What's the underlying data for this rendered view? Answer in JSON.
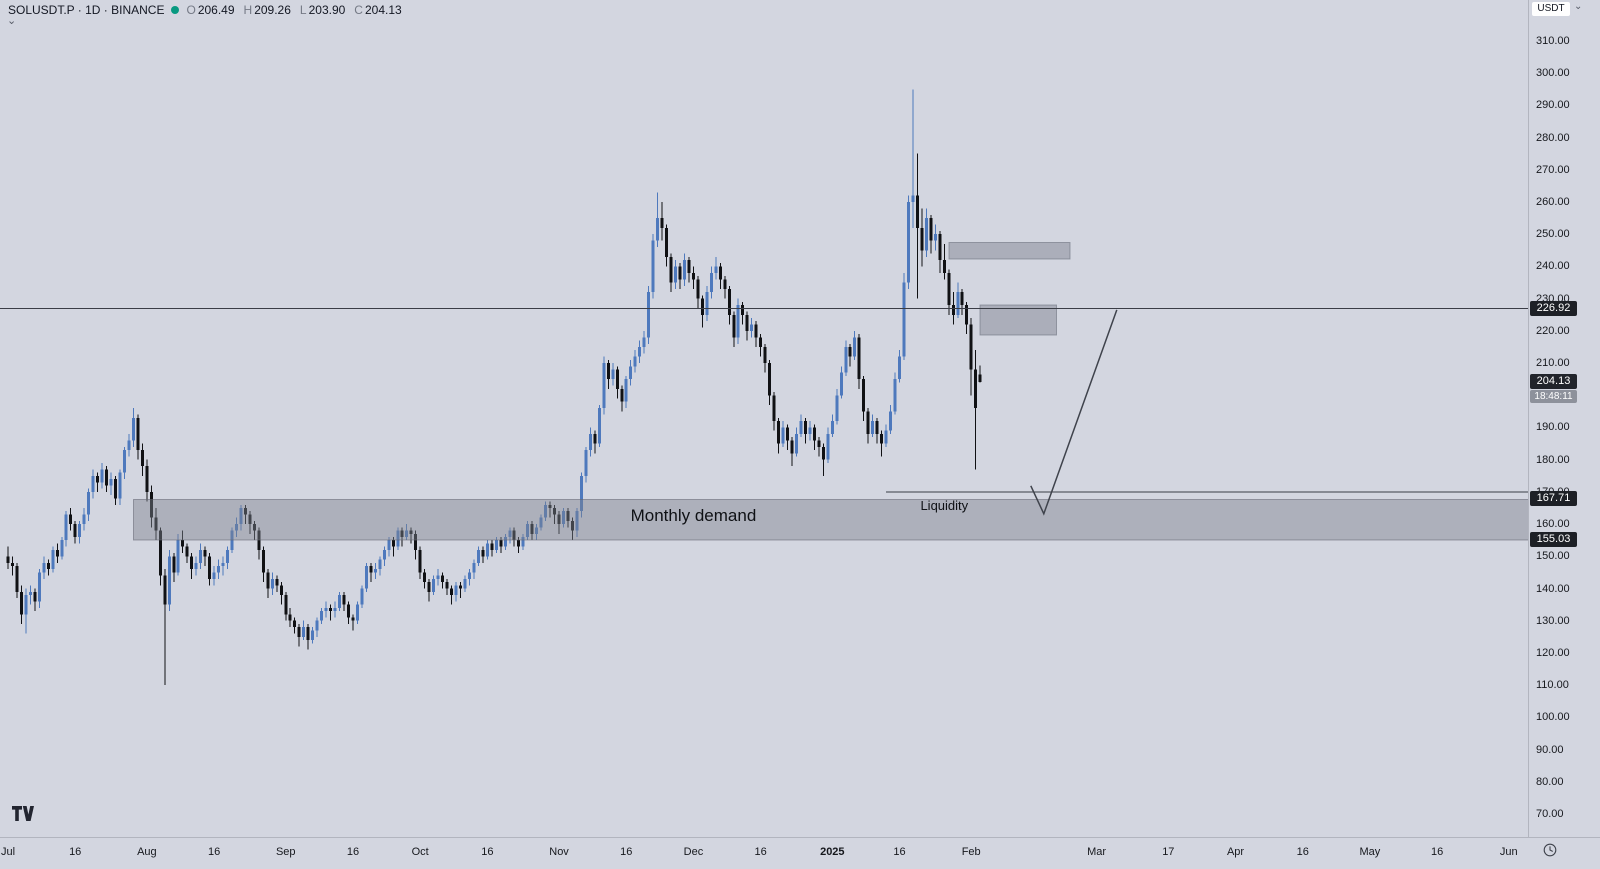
{
  "legend": {
    "title": "SOLUSDT.P · 1D · BINANCE",
    "ohlc": {
      "o_label": "O",
      "o": "206.49",
      "h_label": "H",
      "h": "209.26",
      "l_label": "L",
      "l": "203.90",
      "c_label": "C",
      "c": "204.13"
    }
  },
  "icons": {
    "caret_down": "⌄"
  },
  "price_axis": {
    "currency": "USDT",
    "tags": [
      {
        "value": "226.92",
        "price": 226.92,
        "bg": "#1d2026"
      },
      {
        "value": "167.71",
        "price": 167.71,
        "bg": "#1d2026"
      },
      {
        "value": "155.03",
        "price": 155.03,
        "bg": "#1d2026"
      }
    ],
    "current": {
      "value": "204.13",
      "price": 204.13,
      "bg": "#21242b",
      "countdown": "18:48:11",
      "countdown_bg": "#8d919b"
    }
  },
  "time_axis": {
    "ticks": [
      {
        "label": "Jul",
        "day": 0
      },
      {
        "label": "16",
        "day": 15
      },
      {
        "label": "Aug",
        "day": 31
      },
      {
        "label": "16",
        "day": 46
      },
      {
        "label": "Sep",
        "day": 62
      },
      {
        "label": "16",
        "day": 77
      },
      {
        "label": "Oct",
        "day": 92
      },
      {
        "label": "16",
        "day": 107
      },
      {
        "label": "Nov",
        "day": 123
      },
      {
        "label": "16",
        "day": 138
      },
      {
        "label": "Dec",
        "day": 153
      },
      {
        "label": "16",
        "day": 168
      },
      {
        "label": "2025",
        "day": 184,
        "bold": true
      },
      {
        "label": "16",
        "day": 199
      },
      {
        "label": "Feb",
        "day": 215
      },
      {
        "label": "Mar",
        "day": 243
      },
      {
        "label": "17",
        "day": 259
      },
      {
        "label": "Apr",
        "day": 274
      },
      {
        "label": "16",
        "day": 289
      },
      {
        "label": "May",
        "day": 304
      },
      {
        "label": "16",
        "day": 319
      },
      {
        "label": "Jun",
        "day": 335
      }
    ]
  },
  "chart_data": {
    "type": "candlestick",
    "symbol": "SOLUSDT.P",
    "exchange": "BINANCE",
    "interval": "1D",
    "start_date": "2024-07-01",
    "title": "SOLUSDT.P 1D BINANCE",
    "y_axis": {
      "min": 70,
      "max": 310,
      "step": 10
    },
    "colors": {
      "up": "#4e79bd",
      "down": "#101114",
      "background": "#d3d6e0",
      "drawing": "#3a3d46"
    },
    "candles": [
      [
        150,
        153,
        146,
        148
      ],
      [
        148,
        150,
        144,
        147
      ],
      [
        147,
        148,
        137,
        139
      ],
      [
        139,
        141,
        129,
        132
      ],
      [
        132,
        140,
        126,
        138
      ],
      [
        138,
        141,
        135,
        139
      ],
      [
        139,
        140,
        133,
        136
      ],
      [
        136,
        146,
        134,
        145
      ],
      [
        145,
        150,
        143,
        148
      ],
      [
        148,
        149,
        144,
        146
      ],
      [
        146,
        153,
        145,
        152
      ],
      [
        152,
        154,
        148,
        150
      ],
      [
        150,
        156,
        149,
        155
      ],
      [
        155,
        164,
        153,
        163
      ],
      [
        163,
        165,
        158,
        160
      ],
      [
        160,
        161,
        154,
        156
      ],
      [
        156,
        161,
        154,
        160
      ],
      [
        160,
        165,
        158,
        163
      ],
      [
        163,
        171,
        161,
        170
      ],
      [
        170,
        177,
        168,
        175
      ],
      [
        175,
        176,
        170,
        173
      ],
      [
        173,
        179,
        171,
        177
      ],
      [
        177,
        178,
        170,
        172
      ],
      [
        172,
        176,
        169,
        174
      ],
      [
        174,
        175,
        166,
        168
      ],
      [
        168,
        177,
        166,
        176
      ],
      [
        176,
        184,
        174,
        183
      ],
      [
        183,
        188,
        181,
        186
      ],
      [
        186,
        196,
        184,
        193
      ],
      [
        193,
        194,
        180,
        183
      ],
      [
        183,
        185,
        175,
        178
      ],
      [
        178,
        180,
        167,
        170
      ],
      [
        170,
        172,
        159,
        162
      ],
      [
        162,
        165,
        155,
        158
      ],
      [
        158,
        159,
        141,
        144
      ],
      [
        144,
        146,
        110,
        135
      ],
      [
        135,
        152,
        133,
        150
      ],
      [
        150,
        151,
        142,
        145
      ],
      [
        145,
        157,
        144,
        155
      ],
      [
        155,
        158,
        151,
        153
      ],
      [
        153,
        154,
        148,
        150
      ],
      [
        150,
        151,
        143,
        146
      ],
      [
        146,
        150,
        144,
        148
      ],
      [
        148,
        154,
        146,
        152
      ],
      [
        152,
        153,
        147,
        150
      ],
      [
        150,
        151,
        141,
        143
      ],
      [
        143,
        147,
        141,
        145
      ],
      [
        145,
        149,
        143,
        147
      ],
      [
        147,
        150,
        144,
        148
      ],
      [
        148,
        153,
        146,
        152
      ],
      [
        152,
        159,
        151,
        158
      ],
      [
        158,
        162,
        156,
        160
      ],
      [
        160,
        166,
        158,
        165
      ],
      [
        165,
        166,
        160,
        163
      ],
      [
        163,
        164,
        157,
        160
      ],
      [
        160,
        161,
        155,
        158
      ],
      [
        158,
        159,
        149,
        152
      ],
      [
        152,
        153,
        142,
        145
      ],
      [
        145,
        146,
        137,
        140
      ],
      [
        140,
        145,
        138,
        143
      ],
      [
        143,
        144,
        139,
        141
      ],
      [
        141,
        142,
        135,
        138
      ],
      [
        138,
        139,
        130,
        132
      ],
      [
        132,
        134,
        128,
        130
      ],
      [
        130,
        131,
        126,
        128
      ],
      [
        128,
        129,
        122,
        125
      ],
      [
        125,
        130,
        124,
        128
      ],
      [
        128,
        129,
        121,
        124
      ],
      [
        124,
        128,
        123,
        127
      ],
      [
        127,
        131,
        125,
        130
      ],
      [
        130,
        134,
        129,
        133
      ],
      [
        133,
        136,
        131,
        134
      ],
      [
        134,
        135,
        130,
        133
      ],
      [
        133,
        136,
        131,
        134
      ],
      [
        134,
        139,
        133,
        138
      ],
      [
        138,
        139,
        133,
        135
      ],
      [
        135,
        136,
        129,
        131
      ],
      [
        131,
        132,
        127,
        130
      ],
      [
        130,
        136,
        129,
        135
      ],
      [
        135,
        141,
        134,
        140
      ],
      [
        140,
        148,
        139,
        147
      ],
      [
        147,
        148,
        142,
        145
      ],
      [
        145,
        148,
        143,
        146
      ],
      [
        146,
        150,
        144,
        149
      ],
      [
        149,
        153,
        147,
        152
      ],
      [
        152,
        156,
        150,
        155
      ],
      [
        155,
        156,
        150,
        153
      ],
      [
        153,
        159,
        152,
        158
      ],
      [
        158,
        159,
        153,
        156
      ],
      [
        156,
        160,
        155,
        158
      ],
      [
        158,
        159,
        154,
        157
      ],
      [
        157,
        158,
        149,
        152
      ],
      [
        152,
        153,
        143,
        145
      ],
      [
        145,
        146,
        140,
        142
      ],
      [
        142,
        143,
        136,
        139
      ],
      [
        139,
        144,
        138,
        143
      ],
      [
        143,
        146,
        141,
        144
      ],
      [
        144,
        145,
        140,
        142
      ],
      [
        142,
        143,
        138,
        140
      ],
      [
        140,
        141,
        135,
        138
      ],
      [
        138,
        142,
        136,
        141
      ],
      [
        141,
        142,
        137,
        140
      ],
      [
        140,
        144,
        139,
        143
      ],
      [
        143,
        146,
        141,
        145
      ],
      [
        145,
        149,
        143,
        148
      ],
      [
        148,
        153,
        147,
        152
      ],
      [
        152,
        153,
        148,
        150
      ],
      [
        150,
        155,
        149,
        154
      ],
      [
        154,
        155,
        150,
        152
      ],
      [
        152,
        156,
        151,
        155
      ],
      [
        155,
        156,
        151,
        153
      ],
      [
        153,
        157,
        152,
        156
      ],
      [
        156,
        159,
        154,
        158
      ],
      [
        158,
        159,
        153,
        155
      ],
      [
        155,
        156,
        151,
        153
      ],
      [
        153,
        157,
        152,
        156
      ],
      [
        156,
        161,
        155,
        160
      ],
      [
        160,
        161,
        155,
        157
      ],
      [
        157,
        160,
        155,
        159
      ],
      [
        159,
        163,
        158,
        162
      ],
      [
        162,
        167,
        161,
        166
      ],
      [
        166,
        167,
        162,
        165
      ],
      [
        165,
        166,
        160,
        163
      ],
      [
        163,
        164,
        157,
        160
      ],
      [
        160,
        165,
        159,
        164
      ],
      [
        164,
        165,
        159,
        161
      ],
      [
        161,
        162,
        155,
        158
      ],
      [
        158,
        165,
        156,
        164
      ],
      [
        164,
        176,
        162,
        175
      ],
      [
        175,
        184,
        173,
        183
      ],
      [
        183,
        190,
        181,
        188
      ],
      [
        188,
        189,
        182,
        185
      ],
      [
        185,
        197,
        184,
        196
      ],
      [
        196,
        212,
        194,
        210
      ],
      [
        210,
        211,
        202,
        205
      ],
      [
        205,
        210,
        203,
        208
      ],
      [
        208,
        209,
        199,
        202
      ],
      [
        202,
        203,
        195,
        198
      ],
      [
        198,
        206,
        196,
        205
      ],
      [
        205,
        211,
        203,
        209
      ],
      [
        209,
        214,
        207,
        212
      ],
      [
        212,
        217,
        210,
        215
      ],
      [
        215,
        220,
        213,
        218
      ],
      [
        218,
        234,
        216,
        232
      ],
      [
        232,
        250,
        230,
        248
      ],
      [
        248,
        263,
        246,
        255
      ],
      [
        255,
        260,
        248,
        252
      ],
      [
        252,
        253,
        240,
        243
      ],
      [
        243,
        244,
        232,
        235
      ],
      [
        235,
        242,
        233,
        240
      ],
      [
        240,
        241,
        233,
        236
      ],
      [
        236,
        244,
        234,
        242
      ],
      [
        242,
        243,
        235,
        238
      ],
      [
        238,
        240,
        233,
        236
      ],
      [
        236,
        237,
        227,
        230
      ],
      [
        230,
        231,
        221,
        225
      ],
      [
        225,
        234,
        223,
        232
      ],
      [
        232,
        240,
        230,
        238
      ],
      [
        238,
        243,
        236,
        240
      ],
      [
        240,
        241,
        233,
        236
      ],
      [
        236,
        237,
        230,
        233
      ],
      [
        233,
        234,
        222,
        225
      ],
      [
        225,
        226,
        215,
        218
      ],
      [
        218,
        230,
        216,
        228
      ],
      [
        228,
        229,
        222,
        225
      ],
      [
        225,
        226,
        217,
        220
      ],
      [
        220,
        224,
        218,
        222
      ],
      [
        222,
        223,
        215,
        218
      ],
      [
        218,
        219,
        212,
        215
      ],
      [
        215,
        216,
        207,
        210
      ],
      [
        210,
        211,
        197,
        200
      ],
      [
        200,
        201,
        189,
        192
      ],
      [
        192,
        193,
        182,
        185
      ],
      [
        185,
        192,
        184,
        190
      ],
      [
        190,
        191,
        183,
        186
      ],
      [
        186,
        187,
        178,
        182
      ],
      [
        182,
        190,
        181,
        188
      ],
      [
        188,
        194,
        187,
        192
      ],
      [
        192,
        193,
        185,
        188
      ],
      [
        188,
        192,
        186,
        190
      ],
      [
        190,
        191,
        183,
        186
      ],
      [
        186,
        187,
        181,
        184
      ],
      [
        184,
        185,
        175,
        180
      ],
      [
        180,
        190,
        179,
        188
      ],
      [
        188,
        194,
        187,
        192
      ],
      [
        192,
        202,
        191,
        200
      ],
      [
        200,
        209,
        199,
        207
      ],
      [
        207,
        217,
        206,
        215
      ],
      [
        215,
        216,
        209,
        212
      ],
      [
        212,
        220,
        211,
        218
      ],
      [
        218,
        219,
        202,
        205
      ],
      [
        205,
        206,
        192,
        195
      ],
      [
        195,
        196,
        185,
        188
      ],
      [
        188,
        194,
        187,
        192
      ],
      [
        192,
        193,
        185,
        188
      ],
      [
        188,
        189,
        181,
        185
      ],
      [
        185,
        191,
        184,
        189
      ],
      [
        189,
        197,
        188,
        195
      ],
      [
        195,
        207,
        194,
        205
      ],
      [
        205,
        214,
        204,
        212
      ],
      [
        212,
        238,
        211,
        235
      ],
      [
        235,
        262,
        233,
        260
      ],
      [
        260,
        295,
        252,
        262
      ],
      [
        262,
        275,
        230,
        252
      ],
      [
        252,
        258,
        240,
        245
      ],
      [
        245,
        258,
        243,
        255
      ],
      [
        255,
        256,
        244,
        248
      ],
      [
        248,
        253,
        245,
        250
      ],
      [
        250,
        251,
        238,
        242
      ],
      [
        242,
        247,
        236,
        238
      ],
      [
        238,
        239,
        225,
        228
      ],
      [
        228,
        232,
        222,
        225
      ],
      [
        225,
        235,
        224,
        232
      ],
      [
        232,
        233,
        225,
        228
      ],
      [
        228,
        229,
        219,
        222
      ],
      [
        222,
        224,
        200,
        208
      ],
      [
        208,
        214,
        177,
        196
      ],
      [
        206.49,
        209.26,
        203.9,
        204.13
      ]
    ],
    "hlines": [
      {
        "name": "horizontal-line-226",
        "price": 226.92,
        "day_start": -2,
        "day_end": 400,
        "color": "#3a3d46"
      },
      {
        "name": "liquidity-ray",
        "price": 169.9,
        "day_start": 196,
        "day_end": 400,
        "color": "#3a3d46"
      }
    ],
    "zones": [
      {
        "name": "monthly-demand-zone",
        "price_top": 167.71,
        "price_bottom": 155.03,
        "day_start": 28,
        "day_end": 400,
        "fill": "rgba(127,131,143,0.45)",
        "stroke": "rgba(96,100,112,0.55)"
      },
      {
        "name": "supply-box-upper",
        "price_top": 247.5,
        "price_bottom": 242.3,
        "day_start": 210,
        "day_end": 237,
        "fill": "rgba(138,142,154,0.55)",
        "stroke": "rgba(110,114,127,0.6)"
      },
      {
        "name": "supply-box-lower",
        "price_top": 228.0,
        "price_bottom": 218.7,
        "day_start": 217,
        "day_end": 234,
        "fill": "rgba(138,142,154,0.55)",
        "stroke": "rgba(110,114,127,0.6)"
      }
    ],
    "trendline": {
      "name": "projection-line",
      "color": "#3f434c",
      "points": [
        {
          "day": 228.3,
          "price": 171.9
        },
        {
          "day": 231.2,
          "price": 163.2
        },
        {
          "day": 247.5,
          "price": 226.5
        }
      ]
    },
    "labels": [
      {
        "name": "monthly-demand-label",
        "text": "Monthly demand",
        "day": 153,
        "price": 160.9,
        "size": 17
      },
      {
        "name": "liquidity-label",
        "text": "Liquidity",
        "day": 209,
        "price": 164.4,
        "size": 13
      }
    ]
  }
}
